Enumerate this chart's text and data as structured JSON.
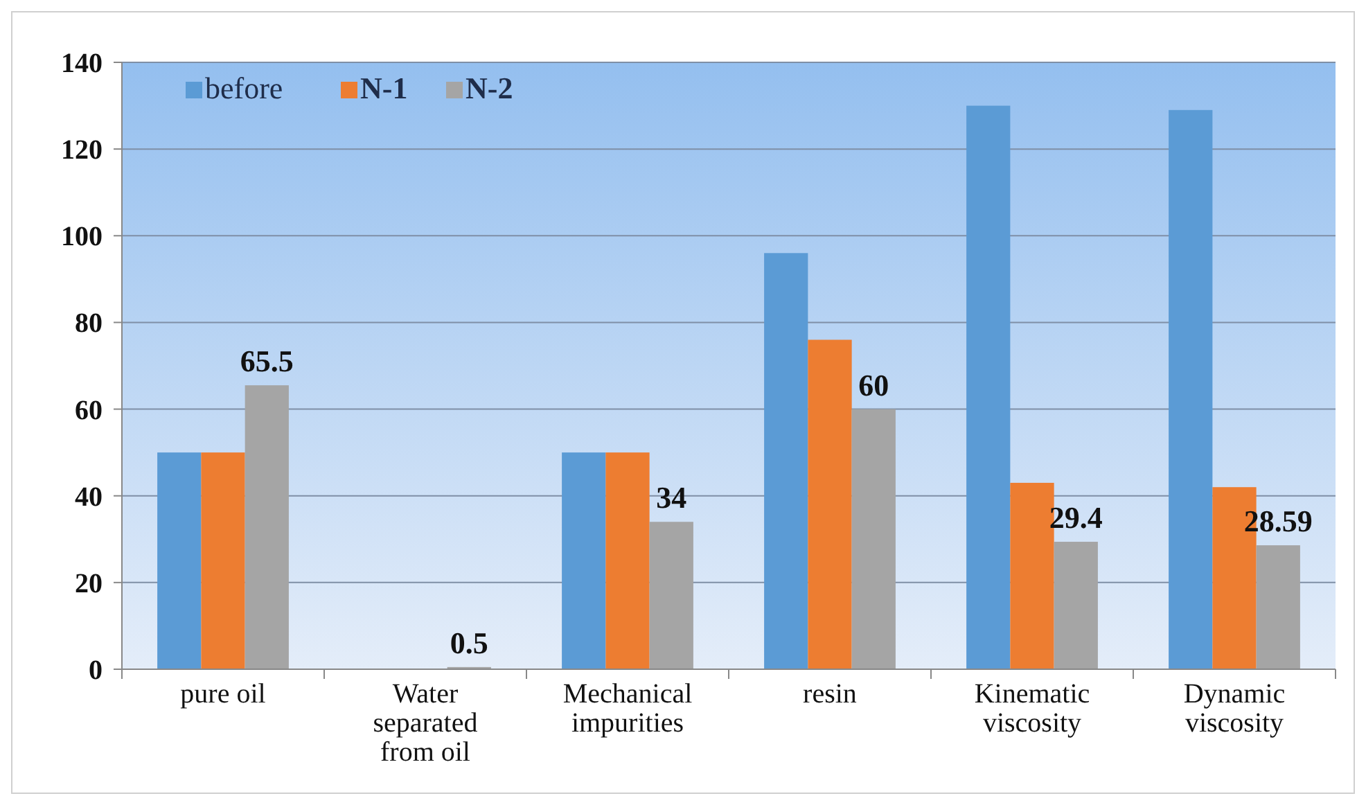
{
  "chart_data": {
    "type": "bar",
    "categories": [
      "pure oil",
      "Water separated from oil",
      "Mechanical impurities",
      "resin",
      "Kinematic viscosity",
      "Dynamic viscosity"
    ],
    "series": [
      {
        "name": "before",
        "color": "#5b9bd5",
        "values": [
          50,
          0,
          50,
          96,
          130,
          129
        ]
      },
      {
        "name": "N-1",
        "color": "#ed7d31",
        "values": [
          50,
          0,
          50,
          76,
          43,
          42
        ]
      },
      {
        "name": "N-2",
        "color": "#a5a5a5",
        "values": [
          65.5,
          0.5,
          34,
          60,
          29.4,
          28.59
        ],
        "value_labels": [
          "65.5",
          "0.5",
          "34",
          "60",
          "29.4",
          "28.59"
        ]
      }
    ],
    "ylim": [
      0,
      140
    ],
    "yticks": [
      0,
      20,
      40,
      60,
      80,
      100,
      120,
      140
    ],
    "grid": "y",
    "legend": "top left"
  }
}
